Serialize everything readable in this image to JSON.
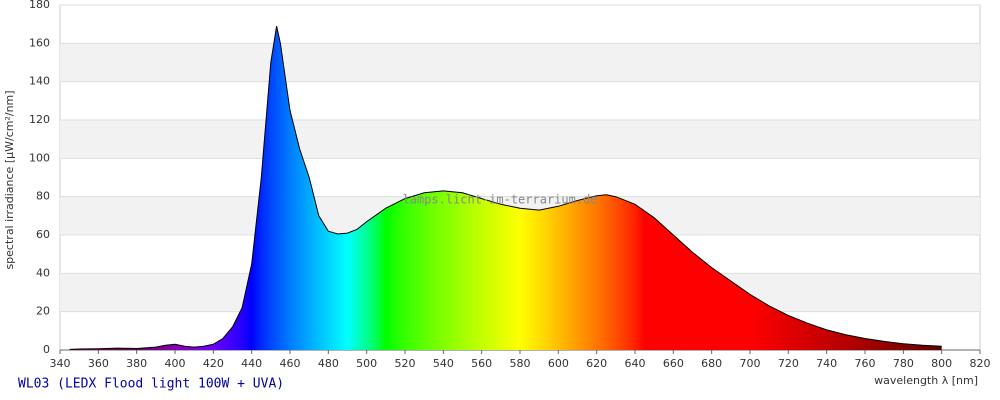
{
  "chart_data": {
    "type": "area",
    "title": "WL03 (LEDX Flood light 100W + UVA)",
    "watermark": "lamps.licht-im-terrarium.de",
    "x_label": "wavelength λ [nm]",
    "y_label": "spectral irradiance [µW/cm²/nm]",
    "x": [
      345,
      350,
      360,
      370,
      380,
      390,
      395,
      400,
      405,
      410,
      415,
      420,
      425,
      430,
      435,
      440,
      445,
      450,
      453,
      455,
      460,
      465,
      470,
      475,
      480,
      485,
      490,
      495,
      500,
      510,
      520,
      530,
      540,
      550,
      560,
      570,
      580,
      590,
      600,
      610,
      620,
      625,
      630,
      640,
      650,
      660,
      670,
      680,
      690,
      700,
      710,
      720,
      730,
      740,
      750,
      760,
      770,
      780,
      790,
      800
    ],
    "values": [
      0.3,
      0.5,
      0.7,
      1.0,
      0.8,
      1.5,
      2.5,
      3.0,
      2.0,
      1.5,
      2.0,
      3,
      6,
      12,
      22,
      45,
      90,
      150,
      169,
      160,
      125,
      105,
      90,
      70,
      62,
      60.5,
      61,
      63,
      67,
      74,
      79,
      82,
      83,
      82,
      79,
      76,
      74,
      73,
      75,
      78,
      80.5,
      81,
      80,
      76,
      69,
      60,
      51,
      43,
      36,
      29,
      23,
      18,
      14,
      10.5,
      8,
      6,
      4.5,
      3.3,
      2.5,
      2
    ],
    "xlim": [
      340,
      820
    ],
    "xticks": [
      340,
      360,
      380,
      400,
      420,
      440,
      460,
      480,
      500,
      520,
      540,
      560,
      580,
      600,
      620,
      640,
      660,
      680,
      700,
      720,
      740,
      760,
      780,
      800,
      820
    ],
    "ylim": [
      0,
      180
    ],
    "yticks": [
      0,
      20,
      40,
      60,
      80,
      100,
      120,
      140,
      160,
      180
    ],
    "grid": true,
    "band_color": "#f2f2f2",
    "line_color": "#000000"
  }
}
